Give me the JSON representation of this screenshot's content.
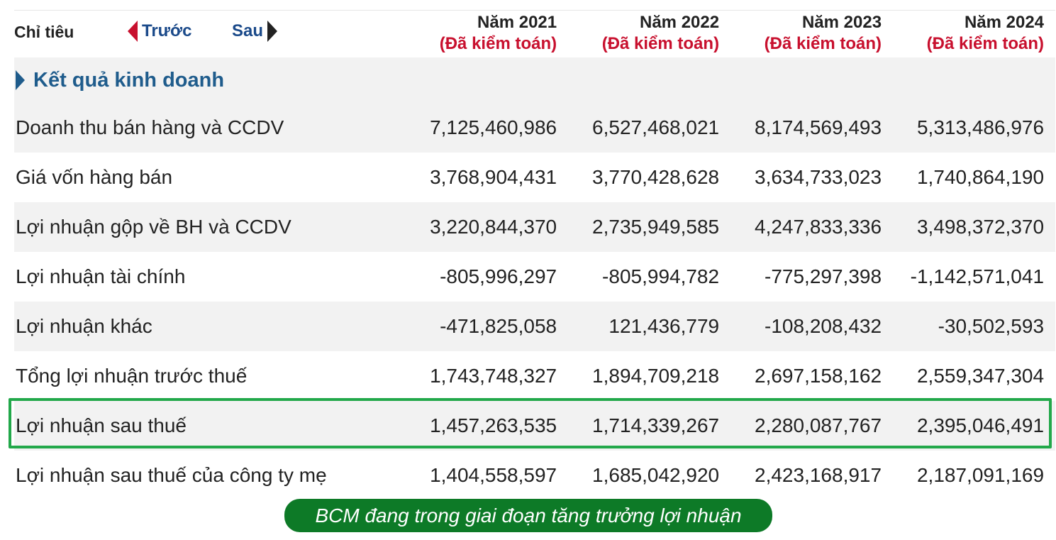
{
  "header": {
    "label": "Chỉ tiêu",
    "prev_label": "Trước",
    "next_label": "Sau",
    "years": [
      {
        "year": "Năm 2021",
        "audit": "(Đã kiểm toán)"
      },
      {
        "year": "Năm 2022",
        "audit": "(Đã kiểm toán)"
      },
      {
        "year": "Năm 2023",
        "audit": "(Đã kiểm toán)"
      },
      {
        "year": "Năm 2024",
        "audit": "(Đã kiểm toán)"
      }
    ]
  },
  "section": {
    "title": "Kết quả kinh doanh"
  },
  "rows": [
    {
      "name": "Doanh thu bán hàng và CCDV",
      "values": [
        "7,125,460,986",
        "6,527,468,021",
        "8,174,569,493",
        "5,313,486,976"
      ]
    },
    {
      "name": "Giá vốn hàng bán",
      "values": [
        "3,768,904,431",
        "3,770,428,628",
        "3,634,733,023",
        "1,740,864,190"
      ]
    },
    {
      "name": "Lợi nhuận gộp về BH và CCDV",
      "values": [
        "3,220,844,370",
        "2,735,949,585",
        "4,247,833,336",
        "3,498,372,370"
      ]
    },
    {
      "name": "Lợi nhuận tài chính",
      "values": [
        "-805,996,297",
        "-805,994,782",
        "-775,297,398",
        "-1,142,571,041"
      ]
    },
    {
      "name": "Lợi nhuận khác",
      "values": [
        "-471,825,058",
        "121,436,779",
        "-108,208,432",
        "-30,502,593"
      ]
    },
    {
      "name": "Tổng lợi nhuận trước thuế",
      "values": [
        "1,743,748,327",
        "1,894,709,218",
        "2,697,158,162",
        "2,559,347,304"
      ]
    },
    {
      "name": "Lợi nhuận sau thuế",
      "values": [
        "1,457,263,535",
        "1,714,339,267",
        "2,280,087,767",
        "2,395,046,491"
      ]
    },
    {
      "name": "Lợi nhuận sau thuế của công ty mẹ",
      "values": [
        "1,404,558,597",
        "1,685,042,920",
        "2,423,168,917",
        "2,187,091,169"
      ]
    }
  ],
  "caption": "BCM đang trong giai đoạn tăng trưởng lợi nhuận",
  "colors": {
    "highlight": "#22a84a",
    "caption_bg": "#0d7a27",
    "audit_red": "#c8102e",
    "section_blue": "#1f5c8c"
  }
}
